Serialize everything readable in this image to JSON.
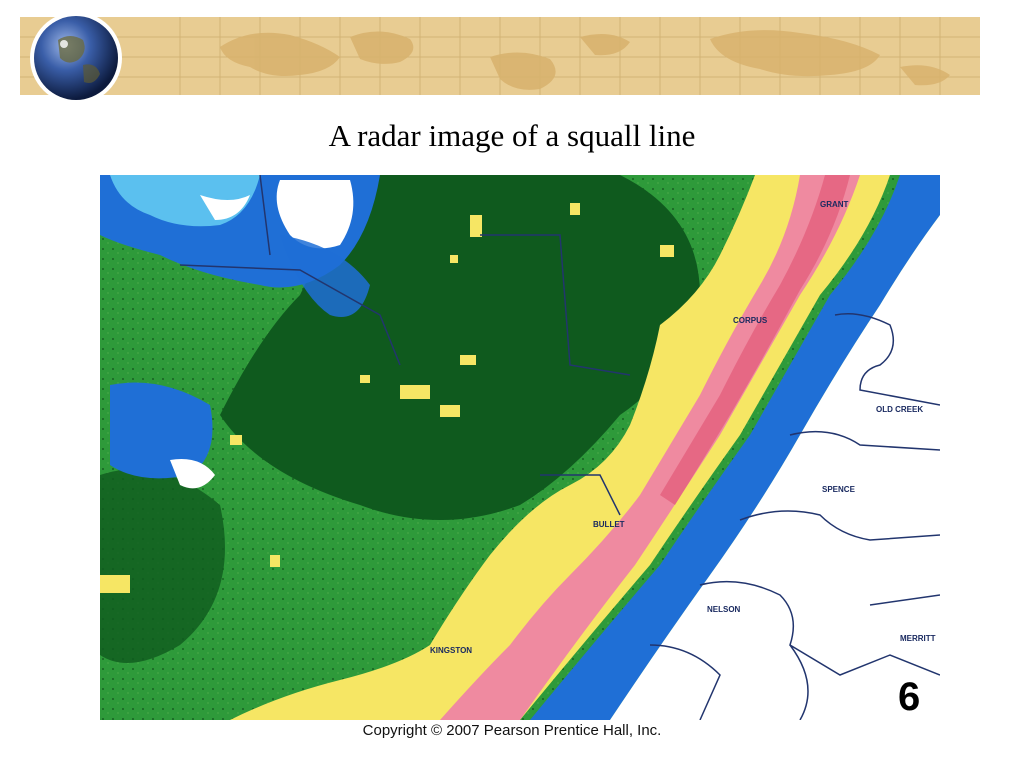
{
  "slide": {
    "title": "A radar image of a squall line",
    "copyright": "Copyright © 2007 Pearson Prentice Hall, Inc.",
    "figure_number": "6"
  },
  "radar": {
    "place_labels": [
      "CORPUS",
      "BULLET",
      "SPENCE",
      "NELSON",
      "KINGSTON",
      "OLD CREEK",
      "MERRITT",
      "GRANT"
    ]
  },
  "colors": {
    "banner": "#e6c98c",
    "dark_green": "#0f5a1e",
    "green": "#2e9a3a",
    "blue": "#1f6fd6",
    "yellow": "#f6e664",
    "pink": "#ef8aa0"
  },
  "icons": [
    "globe-icon"
  ]
}
